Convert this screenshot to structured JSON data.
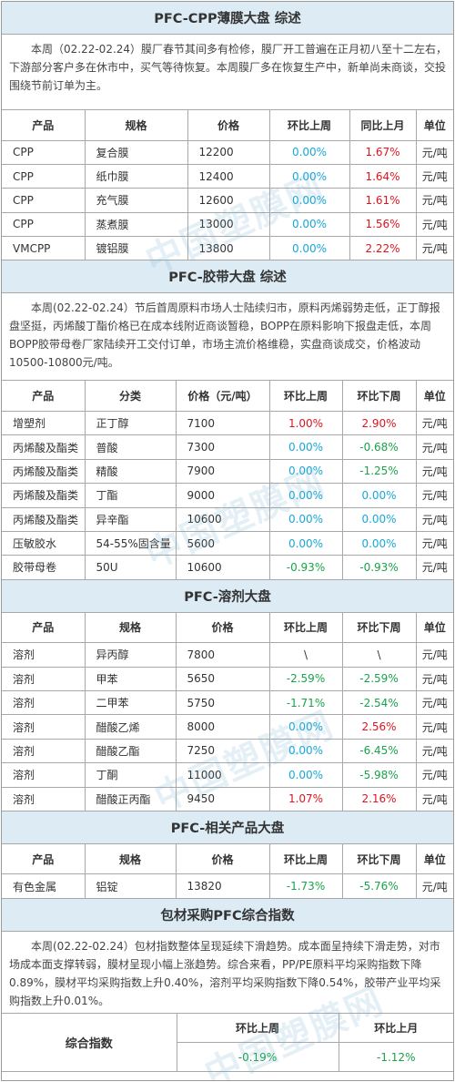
{
  "cpp": {
    "title": "PFC-CPP薄膜大盘 综述",
    "intro": "本周（02.22-02.24）膜厂春节其间多有检修，膜厂开工普遍在正月初八至十二左右，下游部分客户多在休市中，买气等待恢复。本周膜厂多在恢复生产中，新单尚未商谈，交投围绕节前订单为主。",
    "headers": [
      "产品",
      "规格",
      "价格",
      "环比上周",
      "同比上月",
      "单位"
    ],
    "rows": [
      [
        "CPP",
        "复合膜",
        "12200",
        "0.00%",
        "1.67%",
        "元/吨"
      ],
      [
        "CPP",
        "纸巾膜",
        "12400",
        "0.00%",
        "1.64%",
        "元/吨"
      ],
      [
        "CPP",
        "充气膜",
        "12600",
        "0.00%",
        "1.61%",
        "元/吨"
      ],
      [
        "CPP",
        "蒸煮膜",
        "13000",
        "0.00%",
        "1.56%",
        "元/吨"
      ],
      [
        "VMCPP",
        "镀铝膜",
        "13800",
        "0.00%",
        "2.22%",
        "元/吨"
      ]
    ]
  },
  "tape": {
    "title": "PFC-胶带大盘 综述",
    "intro": "本周(02.22-02.24）节后首周原料市场人士陆续归市，原料丙烯弱势走低，正丁醇报盘坚挺，丙烯酸丁酯价格已在成本线附近商谈暂稳，BOPP在原料影响下报盘走低，本周BOPP胶带母卷厂家陆续开工交付订单，市场主流价格维稳，实盘商谈成交，价格波动10500-10800元/吨。",
    "headers": [
      "产品",
      "分类",
      "价格（元/吨）",
      "环比上周",
      "环比下周",
      "单位"
    ],
    "rows": [
      [
        "增塑剂",
        "正丁醇",
        "7100",
        "1.00%",
        "2.90%",
        "元/吨"
      ],
      [
        "丙烯酸及酯类",
        "普酸",
        "7300",
        "0.00%",
        "-0.68%",
        "元/吨"
      ],
      [
        "丙烯酸及酯类",
        "精酸",
        "7900",
        "0.00%",
        "-1.25%",
        "元/吨"
      ],
      [
        "丙烯酸及酯类",
        "丁酯",
        "9000",
        "0.00%",
        "0.00%",
        "元/吨"
      ],
      [
        "丙烯酸及酯类",
        "异辛酯",
        "10600",
        "0.00%",
        "0.00%",
        "元/吨"
      ],
      [
        "压敏胶水",
        "54-55%固含量",
        "5600",
        "0.00%",
        "0.00%",
        "元/吨"
      ],
      [
        "胶带母卷",
        "50U",
        "10600",
        "-0.93%",
        "-0.93%",
        "元/吨"
      ]
    ]
  },
  "solvent": {
    "title": "PFC-溶剂大盘",
    "headers": [
      "产品",
      "规格",
      "价格",
      "环比上周",
      "环比下周",
      "单位"
    ],
    "rows": [
      [
        "溶剂",
        "异丙醇",
        "7800",
        "\\",
        "\\",
        "元/吨"
      ],
      [
        "溶剂",
        "甲苯",
        "5650",
        "-2.59%",
        "-2.59%",
        "元/吨"
      ],
      [
        "溶剂",
        "二甲苯",
        "5750",
        "-1.71%",
        "-2.54%",
        "元/吨"
      ],
      [
        "溶剂",
        "醋酸乙烯",
        "8000",
        "0.00%",
        "2.56%",
        "元/吨"
      ],
      [
        "溶剂",
        "醋酸乙酯",
        "7250",
        "0.00%",
        "-6.45%",
        "元/吨"
      ],
      [
        "溶剂",
        "丁酮",
        "11000",
        "0.00%",
        "-5.98%",
        "元/吨"
      ],
      [
        "溶剂",
        "醋酸正丙酯",
        "9450",
        "1.07%",
        "2.16%",
        "元/吨"
      ]
    ]
  },
  "related": {
    "title": "PFC-相关产品大盘",
    "headers": [
      "产品",
      "规格",
      "价格",
      "环比上周",
      "环比下周",
      "单位"
    ],
    "rows": [
      [
        "有色金属",
        "铝锭",
        "13820",
        "-1.73%",
        "-5.76%",
        "元/吨"
      ]
    ]
  },
  "index": {
    "title": "包材采购PFC综合指数",
    "intro": "本周(02.22-02.24）包材指数整体呈现延续下滑趋势。成本面呈持续下滑走势，对市场成本面支撑转弱，膜材呈现小幅上涨趋势。综合来看，PP/PE原料平均采购指数下降0.89%，膜材平均采购指数上升0.40%，溶剂平均采购指数下降0.54%，胶带产业平均采购指数上升0.01%。",
    "label": "综合指数",
    "col1_header": "环比上周",
    "col2_header": "环比上月",
    "col1_value": "-0.19%",
    "col2_value": "-1.12%"
  },
  "watermark_text": "中国塑膜网",
  "colors": {
    "up": "#e0141e",
    "down": "#19a34a",
    "flat": "#18a8d8",
    "header_bg": "#dcebf4"
  }
}
